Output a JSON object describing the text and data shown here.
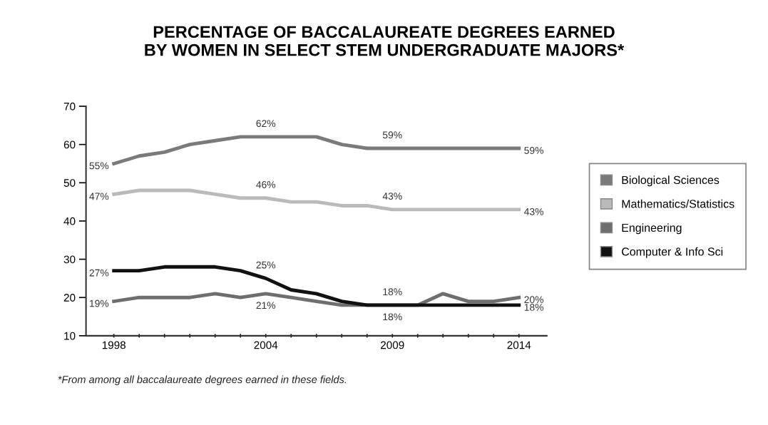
{
  "chart_data": {
    "type": "line",
    "title": "PERCENTAGE OF BACCALAUREATE DEGREES EARNED\nBY WOMEN IN SELECT STEM UNDERGRADUATE MAJORS*",
    "x": [
      1998,
      1999,
      2000,
      2001,
      2002,
      2003,
      2004,
      2005,
      2006,
      2007,
      2008,
      2009,
      2010,
      2011,
      2012,
      2013,
      2014
    ],
    "series": [
      {
        "name": "Biological Sciences",
        "color": "#7a7a7a",
        "values": [
          55,
          57,
          58,
          60,
          61,
          62,
          62,
          62,
          62,
          60,
          59,
          59,
          59,
          59,
          59,
          59,
          59
        ],
        "value_labels": [
          "55%",
          null,
          null,
          null,
          null,
          null,
          "62%",
          null,
          null,
          null,
          null,
          "59%",
          null,
          null,
          null,
          null,
          "59%"
        ]
      },
      {
        "name": "Mathematics/Statistics",
        "color": "#bababa",
        "values": [
          47,
          48,
          48,
          48,
          47,
          46,
          46,
          45,
          45,
          44,
          44,
          43,
          43,
          43,
          43,
          43,
          43
        ],
        "value_labels": [
          "47%",
          null,
          null,
          null,
          null,
          null,
          "46%",
          null,
          null,
          null,
          null,
          "43%",
          null,
          null,
          null,
          null,
          "43%"
        ]
      },
      {
        "name": "Engineering",
        "color": "#6e6e6e",
        "values": [
          19,
          20,
          20,
          20,
          21,
          20,
          21,
          20,
          19,
          18,
          18,
          18,
          18,
          21,
          19,
          19,
          20
        ],
        "value_labels": [
          "19%",
          null,
          null,
          null,
          null,
          null,
          "21%",
          null,
          null,
          null,
          null,
          "18%",
          null,
          null,
          null,
          null,
          "20%"
        ]
      },
      {
        "name": "Computer & Info Sci",
        "color": "#111111",
        "values": [
          27,
          27,
          28,
          28,
          28,
          27,
          25,
          22,
          21,
          19,
          18,
          18,
          18,
          18,
          18,
          18,
          18
        ],
        "value_labels": [
          "27%",
          null,
          null,
          null,
          null,
          null,
          "25%",
          null,
          null,
          null,
          null,
          "18%",
          null,
          null,
          null,
          null,
          "18%"
        ]
      }
    ],
    "xlim": [
      1996.9,
      2015.1
    ],
    "xticks": [
      1998,
      {
        "value": 1999,
        "label": null
      },
      {
        "value": 2000,
        "label": null
      },
      {
        "value": 2001,
        "label": null
      },
      {
        "value": 2002,
        "label": null
      },
      {
        "value": 2003,
        "label": null
      },
      2004,
      {
        "value": 2005,
        "label": null
      },
      {
        "value": 2006,
        "label": null
      },
      {
        "value": 2007,
        "label": null
      },
      {
        "value": 2008,
        "label": null
      },
      2009,
      {
        "value": 2010,
        "label": null
      },
      {
        "value": 2011,
        "label": null
      },
      {
        "value": 2012,
        "label": null
      },
      {
        "value": 2013,
        "label": null
      },
      2014
    ],
    "ylim": [
      10,
      70
    ],
    "yticks": [
      10,
      20,
      30,
      40,
      50,
      60,
      70
    ],
    "grid": false,
    "legend": "right",
    "marker": "none",
    "line_style": "solid",
    "annotations": [
      "*From among all baccalaureate degrees earned in these fields."
    ]
  }
}
